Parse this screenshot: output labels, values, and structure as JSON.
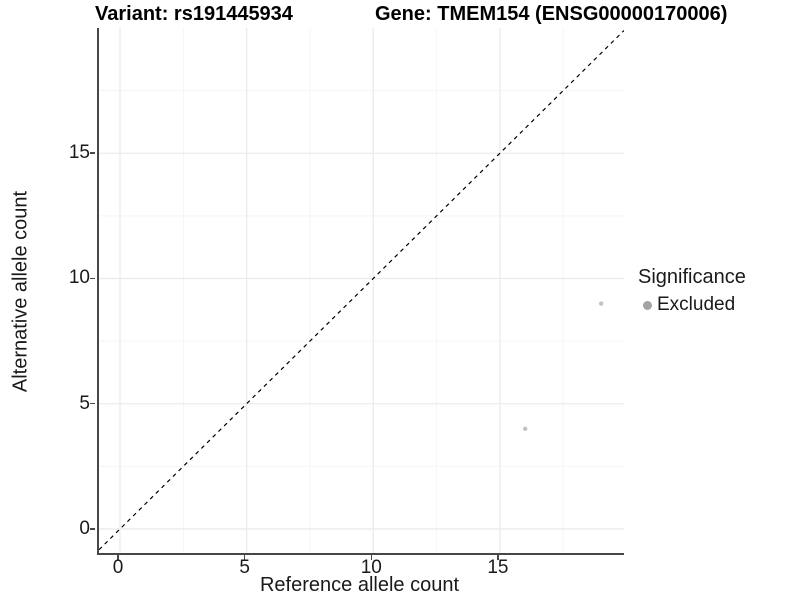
{
  "titles": {
    "variant": "Variant: rs191445934",
    "gene": "Gene: TMEM154 (ENSG00000170006)"
  },
  "chart_data": {
    "type": "scatter",
    "title": "Variant: rs191445934 | Gene: TMEM154 (ENSG00000170006)",
    "xlabel": "Reference allele count",
    "ylabel": "Alternative allele count",
    "xlim": [
      -0.83,
      19.9
    ],
    "ylim": [
      -0.96,
      20.0
    ],
    "x_ticks": [
      0,
      5,
      10,
      15
    ],
    "y_ticks": [
      0,
      5,
      10,
      15
    ],
    "x_minor_ticks": [
      2.5,
      7.5,
      12.5,
      17.5
    ],
    "y_minor_ticks": [
      2.5,
      7.5,
      12.5,
      17.5
    ],
    "grid": true,
    "points": [
      {
        "x": 16,
        "y": 4
      },
      {
        "x": 19,
        "y": 9
      }
    ],
    "point_color": "#c3c3c4",
    "point_radius": 2.2,
    "reference_line": {
      "equation": "y = x",
      "style": "dashed",
      "color": "#000000"
    },
    "legend": {
      "title": "Significance",
      "position": "right",
      "items": [
        {
          "label": "Excluded",
          "color": "#a3a3a4"
        }
      ]
    },
    "colors": {
      "grid_major": "#ebebeb",
      "grid_minor": "#f5f5f5",
      "axis_line": "#474747",
      "text": "#1a1a1a"
    }
  }
}
